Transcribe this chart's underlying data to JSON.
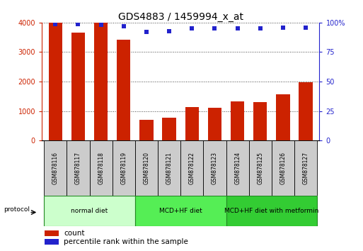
{
  "title": "GDS4883 / 1459994_x_at",
  "samples": [
    "GSM878116",
    "GSM878117",
    "GSM878118",
    "GSM878119",
    "GSM878120",
    "GSM878121",
    "GSM878122",
    "GSM878123",
    "GSM878124",
    "GSM878125",
    "GSM878126",
    "GSM878127"
  ],
  "counts": [
    4000,
    3650,
    4000,
    3430,
    700,
    780,
    1140,
    1100,
    1320,
    1310,
    1580,
    1980
  ],
  "percentile": [
    99,
    99,
    98,
    97,
    92,
    93,
    95,
    95,
    95,
    95,
    96,
    96
  ],
  "bar_color": "#cc2200",
  "dot_color": "#2222cc",
  "ylim_left": [
    0,
    4000
  ],
  "ylim_right": [
    0,
    100
  ],
  "yticks_left": [
    0,
    1000,
    2000,
    3000,
    4000
  ],
  "yticks_right": [
    0,
    25,
    50,
    75,
    100
  ],
  "ytick_labels_right": [
    "0",
    "25",
    "50",
    "75",
    "100%"
  ],
  "groups": [
    {
      "label": "normal diet",
      "start": 0,
      "end": 4,
      "color": "#ccffcc"
    },
    {
      "label": "MCD+HF diet",
      "start": 4,
      "end": 8,
      "color": "#55ee55"
    },
    {
      "label": "MCD+HF diet with metformin",
      "start": 8,
      "end": 12,
      "color": "#33cc33"
    }
  ],
  "protocol_label": "protocol",
  "legend_count_label": "count",
  "legend_pct_label": "percentile rank within the sample",
  "tick_label_color_left": "#cc2200",
  "tick_label_color_right": "#2222cc",
  "title_fontsize": 10,
  "sample_box_color": "#cccccc",
  "group_border_color": "#228822"
}
